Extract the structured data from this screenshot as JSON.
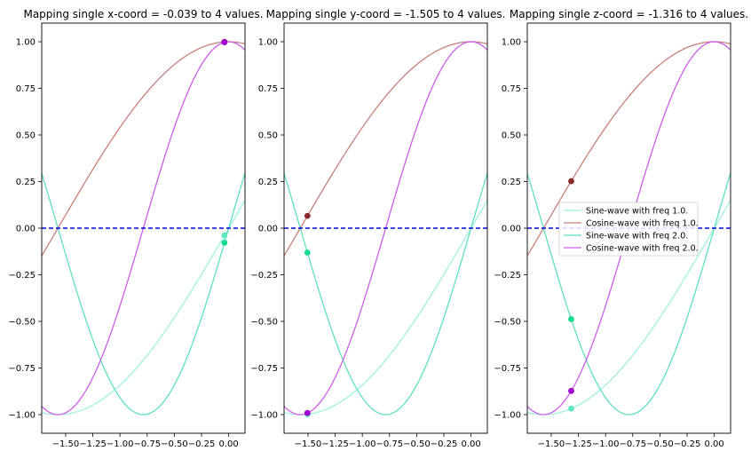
{
  "chart_data": [
    {
      "type": "line",
      "title": "Mapping single x-coord = -0.039 to 4 values.",
      "coord": -0.039,
      "xlim": [
        -1.72,
        0.15
      ],
      "ylim": [
        -1.1,
        1.1
      ],
      "xticks": [
        "−1.50",
        "−1.25",
        "−1.00",
        "−0.75",
        "−0.50",
        "−0.25",
        "0.00"
      ],
      "xtick_values": [
        -1.5,
        -1.25,
        -1.0,
        -0.75,
        -0.5,
        -0.25,
        0.0
      ],
      "yticks": [
        "1.00",
        "0.75",
        "0.50",
        "0.25",
        "0.00",
        "−0.25",
        "−0.50",
        "−0.75",
        "−1.00"
      ],
      "ytick_values": [
        1.0,
        0.75,
        0.5,
        0.25,
        0.0,
        -0.25,
        -0.5,
        -0.75,
        -1.0
      ],
      "series": [
        {
          "name": "Sine-wave with freq 1.0.",
          "func": "sin",
          "freq": 1.0,
          "color": "#9ff2dc"
        },
        {
          "name": "Cosine-wave with freq 1.0.",
          "func": "cos",
          "freq": 1.0,
          "color": "#c8807a"
        },
        {
          "name": "Sine-wave with freq 2.0.",
          "func": "sin",
          "freq": 2.0,
          "color": "#5fe0be"
        },
        {
          "name": "Cosine-wave with freq 2.0.",
          "func": "cos",
          "freq": 2.0,
          "color": "#cc5ee8"
        }
      ],
      "points": [
        {
          "series": "Sine-wave with freq 1.0.",
          "x": -0.039,
          "y": -0.039,
          "color": "#5fe8bd"
        },
        {
          "series": "Cosine-wave with freq 1.0.",
          "x": -0.039,
          "y": 0.999,
          "color": "#8b2a2a"
        },
        {
          "series": "Sine-wave with freq 2.0.",
          "x": -0.039,
          "y": -0.078,
          "color": "#14d98f"
        },
        {
          "series": "Cosine-wave with freq 2.0.",
          "x": -0.039,
          "y": 0.997,
          "color": "#a200d0"
        }
      ],
      "hline": {
        "y": 0.0,
        "color": "#0000dd",
        "style": "dashed"
      },
      "legend": null
    },
    {
      "type": "line",
      "title": "Mapping single y-coord = -1.505 to 4 values.",
      "coord": -1.505,
      "xlim": [
        -1.72,
        0.15
      ],
      "ylim": [
        -1.1,
        1.1
      ],
      "xticks": [
        "−1.50",
        "−1.25",
        "−1.00",
        "−0.75",
        "−0.50",
        "−0.25",
        "0.00"
      ],
      "xtick_values": [
        -1.5,
        -1.25,
        -1.0,
        -0.75,
        -0.5,
        -0.25,
        0.0
      ],
      "yticks": [
        "1.00",
        "0.75",
        "0.50",
        "0.25",
        "0.00",
        "−0.25",
        "−0.50",
        "−0.75",
        "−1.00"
      ],
      "ytick_values": [
        1.0,
        0.75,
        0.5,
        0.25,
        0.0,
        -0.25,
        -0.5,
        -0.75,
        -1.0
      ],
      "series": [
        {
          "name": "Sine-wave with freq 1.0.",
          "func": "sin",
          "freq": 1.0,
          "color": "#9ff2dc"
        },
        {
          "name": "Cosine-wave with freq 1.0.",
          "func": "cos",
          "freq": 1.0,
          "color": "#c8807a"
        },
        {
          "name": "Sine-wave with freq 2.0.",
          "func": "sin",
          "freq": 2.0,
          "color": "#5fe0be"
        },
        {
          "name": "Cosine-wave with freq 2.0.",
          "func": "cos",
          "freq": 2.0,
          "color": "#cc5ee8"
        }
      ],
      "points": [
        {
          "series": "Sine-wave with freq 1.0.",
          "x": -1.505,
          "y": -0.998,
          "color": "#5fe8bd"
        },
        {
          "series": "Cosine-wave with freq 1.0.",
          "x": -1.505,
          "y": 0.066,
          "color": "#8b2a2a"
        },
        {
          "series": "Sine-wave with freq 2.0.",
          "x": -1.505,
          "y": -0.131,
          "color": "#14d98f"
        },
        {
          "series": "Cosine-wave with freq 2.0.",
          "x": -1.505,
          "y": -0.991,
          "color": "#a200d0"
        }
      ],
      "hline": {
        "y": 0.0,
        "color": "#0000dd",
        "style": "dashed"
      },
      "legend": null
    },
    {
      "type": "line",
      "title": "Mapping single z-coord = -1.316 to 4 values.",
      "coord": -1.316,
      "xlim": [
        -1.72,
        0.15
      ],
      "ylim": [
        -1.1,
        1.1
      ],
      "xticks": [
        "−1.50",
        "−1.25",
        "−1.00",
        "−0.75",
        "−0.50",
        "−0.25",
        "0.00"
      ],
      "xtick_values": [
        -1.5,
        -1.25,
        -1.0,
        -0.75,
        -0.5,
        -0.25,
        0.0
      ],
      "yticks": [
        "1.00",
        "0.75",
        "0.50",
        "0.25",
        "0.00",
        "−0.25",
        "−0.50",
        "−0.75",
        "−1.00"
      ],
      "ytick_values": [
        1.0,
        0.75,
        0.5,
        0.25,
        0.0,
        -0.25,
        -0.5,
        -0.75,
        -1.0
      ],
      "series": [
        {
          "name": "Sine-wave with freq 1.0.",
          "func": "sin",
          "freq": 1.0,
          "color": "#9ff2dc"
        },
        {
          "name": "Cosine-wave with freq 1.0.",
          "func": "cos",
          "freq": 1.0,
          "color": "#c8807a"
        },
        {
          "name": "Sine-wave with freq 2.0.",
          "func": "sin",
          "freq": 2.0,
          "color": "#5fe0be"
        },
        {
          "name": "Cosine-wave with freq 2.0.",
          "func": "cos",
          "freq": 2.0,
          "color": "#cc5ee8"
        }
      ],
      "points": [
        {
          "series": "Sine-wave with freq 1.0.",
          "x": -1.316,
          "y": -0.968,
          "color": "#5fe8bd"
        },
        {
          "series": "Cosine-wave with freq 1.0.",
          "x": -1.316,
          "y": 0.252,
          "color": "#8b2a2a"
        },
        {
          "series": "Sine-wave with freq 2.0.",
          "x": -1.316,
          "y": -0.488,
          "color": "#14d98f"
        },
        {
          "series": "Cosine-wave with freq 2.0.",
          "x": -1.316,
          "y": -0.873,
          "color": "#a200d0"
        }
      ],
      "hline": {
        "y": 0.0,
        "color": "#0000dd",
        "style": "dashed"
      },
      "legend": {
        "placement": "center-right",
        "entries": [
          "Sine-wave with freq 1.0.",
          "Cosine-wave with freq 1.0.",
          "Sine-wave with freq 2.0.",
          "Cosine-wave with freq 2.0."
        ]
      }
    }
  ]
}
